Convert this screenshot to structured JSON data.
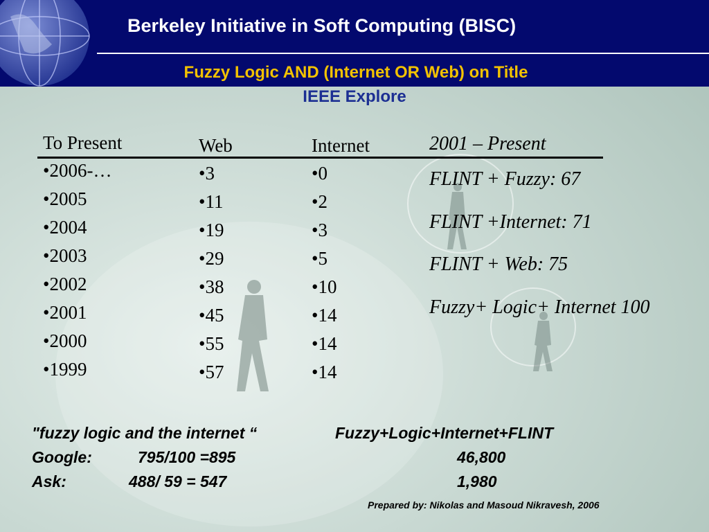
{
  "header": {
    "title": "Berkeley Initiative in Soft Computing  (BISC)",
    "subtitle": "Fuzzy Logic AND (Internet  OR  Web) on Title",
    "source": "IEEE Explore"
  },
  "table": {
    "year_header": "To Present",
    "web_header": "Web",
    "internet_header": "Internet",
    "years": [
      "•2006-…",
      "•2005",
      "•2004",
      "•2003",
      "•2002",
      "•2001",
      "•2000",
      "•1999"
    ],
    "web": [
      "•3",
      "•11",
      "•19",
      "•29",
      "•38",
      "•45",
      "•55",
      "•57"
    ],
    "internet": [
      "•0",
      "•2",
      "•3",
      "•5",
      "•10",
      "•14",
      "•14",
      "•14"
    ]
  },
  "summary": {
    "heading": "2001 – Present",
    "lines": [
      "FLINT + Fuzzy: 67",
      "FLINT +Internet: 71",
      "FLINT + Web: 75",
      "Fuzzy+ Logic+ Internet 100"
    ]
  },
  "search": {
    "query1": "\"fuzzy logic and the internet “",
    "query2": "Fuzzy+Logic+Internet+FLINT",
    "google_label": "Google:",
    "google_q1": "795/100   =895",
    "google_q2": "46,800",
    "ask_label": "Ask:",
    "ask_q1": "488/ 59 = 547",
    "ask_q2": "1,980"
  },
  "credit": "Prepared by: Nikolas and Masoud Nikravesh, 2006",
  "colors": {
    "header_bg": "#03096e",
    "subtitle_yellow": "#f2c200",
    "subtitle_blue": "#1c2f93",
    "background": "#c9d9d3"
  }
}
